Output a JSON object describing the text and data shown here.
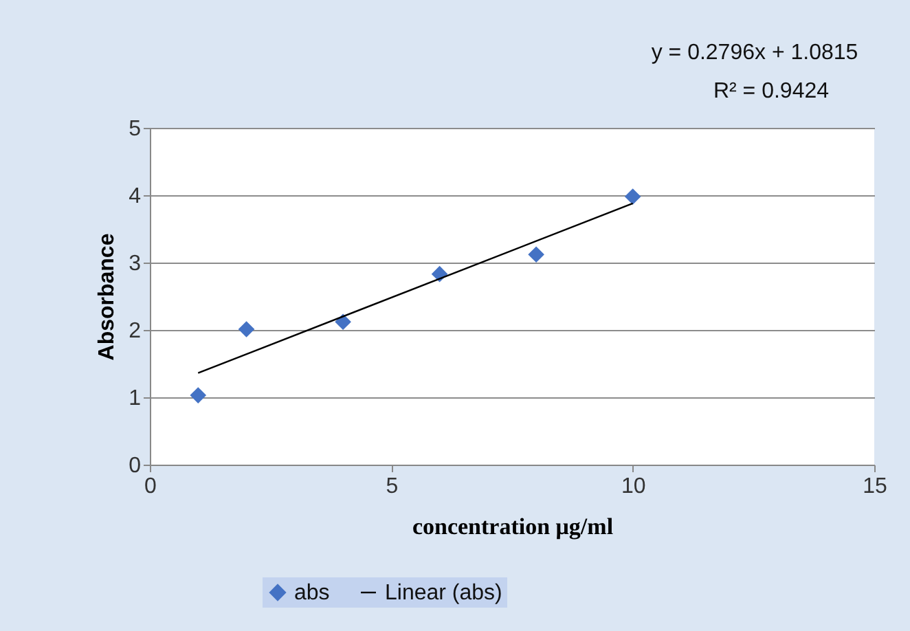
{
  "chart_data": {
    "type": "scatter",
    "xlabel": "concentration μg/ml",
    "ylabel": "Absorbance",
    "annotations": [
      "y = 0.2796x + 1.0815",
      "R² = 0.9424"
    ],
    "xlim": [
      0,
      15
    ],
    "xticks": [
      0,
      5,
      10,
      15
    ],
    "ylim": [
      0,
      5
    ],
    "yticks": [
      0,
      1,
      2,
      3,
      4,
      5
    ],
    "grid": "y",
    "legend": "bottom",
    "series": [
      {
        "name": "abs",
        "type": "scatter",
        "marker": "diamond",
        "color": "#4472c4",
        "x": [
          1,
          2,
          4,
          6,
          8,
          10
        ],
        "values": [
          1.03,
          2.01,
          2.12,
          2.83,
          3.12,
          3.98
        ]
      },
      {
        "name": "Linear (abs)",
        "type": "line",
        "color": "#000000",
        "x": [
          1,
          10
        ],
        "values": [
          1.36,
          3.88
        ]
      }
    ]
  }
}
